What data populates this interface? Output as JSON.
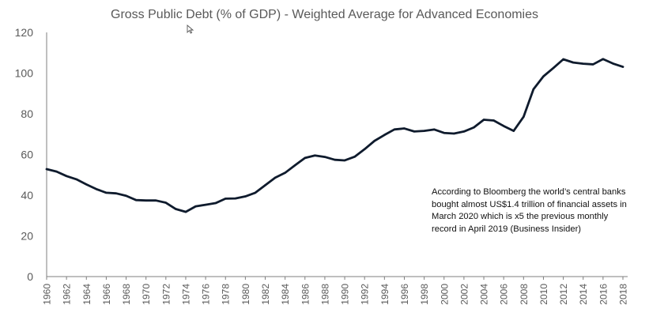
{
  "chart_data": {
    "type": "line",
    "title": "Gross Public Debt (% of GDP) - Weighted Average for Advanced Economies",
    "xlabel": "",
    "ylabel": "",
    "ylim": [
      0,
      120
    ],
    "xlim": [
      1960,
      2018
    ],
    "yticks": [
      0,
      20,
      40,
      60,
      80,
      100,
      120
    ],
    "xticks": [
      1960,
      1962,
      1964,
      1966,
      1968,
      1970,
      1972,
      1974,
      1976,
      1978,
      1980,
      1982,
      1984,
      1986,
      1988,
      1990,
      1992,
      1994,
      1996,
      1998,
      2000,
      2002,
      2004,
      2006,
      2008,
      2010,
      2012,
      2014,
      2016,
      2018
    ],
    "grid": false,
    "legend": "none",
    "line_color": "#0f1b2d",
    "x": [
      1960,
      1961,
      1962,
      1963,
      1964,
      1965,
      1966,
      1967,
      1968,
      1969,
      1970,
      1971,
      1972,
      1973,
      1974,
      1975,
      1976,
      1977,
      1978,
      1979,
      1980,
      1981,
      1982,
      1983,
      1984,
      1985,
      1986,
      1987,
      1988,
      1989,
      1990,
      1991,
      1992,
      1993,
      1994,
      1995,
      1996,
      1997,
      1998,
      1999,
      2000,
      2001,
      2002,
      2003,
      2004,
      2005,
      2006,
      2007,
      2008,
      2009,
      2010,
      2011,
      2012,
      2013,
      2014,
      2015,
      2016,
      2017,
      2018
    ],
    "series": [
      {
        "values": [
          52.8,
          51.6,
          49.4,
          47.8,
          45.3,
          43.0,
          41.2,
          40.9,
          39.7,
          37.6,
          37.4,
          37.4,
          36.3,
          33.2,
          31.8,
          34.5,
          35.3,
          36.1,
          38.3,
          38.4,
          39.4,
          41.2,
          44.9,
          48.6,
          51.0,
          54.7,
          58.3,
          59.5,
          58.8,
          57.4,
          57.1,
          58.9,
          62.6,
          66.7,
          69.6,
          72.3,
          72.8,
          71.3,
          71.6,
          72.3,
          70.6,
          70.3,
          71.3,
          73.3,
          77.1,
          76.7,
          74.0,
          71.6,
          78.5,
          92.1,
          98.4,
          102.5,
          106.8,
          105.2,
          104.6,
          104.3,
          106.9,
          104.7,
          103.1
        ]
      }
    ],
    "annotation": [
      "According to Bloomberg the world’s central banks",
      "bought almost US$1.4 trillion of financial assets in",
      "March 2020 which is x5 the previous monthly",
      "record in April 2019 (Business Insider)"
    ]
  }
}
